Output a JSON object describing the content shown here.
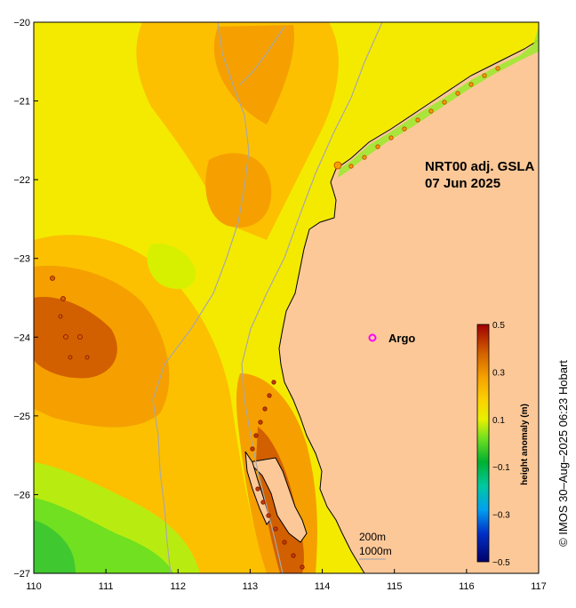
{
  "map": {
    "title_line1": "NRT00 adj. GSLA",
    "title_line2": "07 Jun 2025",
    "legend_argo": "Argo",
    "isobath_1": "200m",
    "isobath_2": "1000m",
    "credit": "© IMOS 30–Aug–2025 06:23 Hobart",
    "x_ticks": [
      "110",
      "111",
      "112",
      "113",
      "114",
      "115",
      "116",
      "117"
    ],
    "y_ticks": [
      "−20",
      "−21",
      "−22",
      "−23",
      "−24",
      "−25",
      "−26",
      "−27"
    ],
    "lon_range": [
      110,
      117
    ],
    "lat_range": [
      -27,
      -20
    ],
    "colorbar": {
      "label": "height anomaly (m)",
      "range": [
        -0.5,
        0.5
      ],
      "ticks": [
        "0.5",
        "0.3",
        "0.1",
        "−0.1",
        "−0.3",
        "−0.5"
      ]
    },
    "colors": {
      "land": "#fdc898",
      "argo_marker": "#ff00ff",
      "isobath": "#a8a8a8",
      "coast": "#000000"
    }
  }
}
